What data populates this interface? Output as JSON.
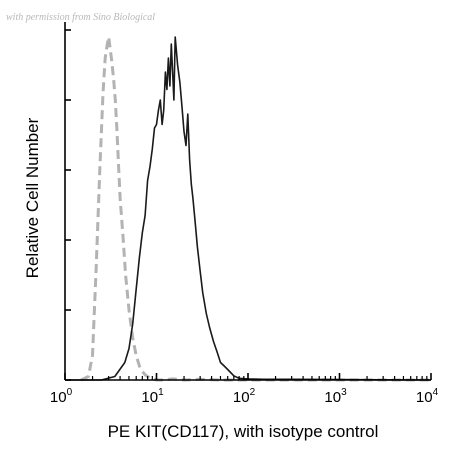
{
  "watermark": "with permission from Sino Biological",
  "chart_data": {
    "type": "line",
    "xlabel": "PE KIT(CD117), with isotype control",
    "ylabel": "Relative Cell Number",
    "x_scale": "log",
    "xlim": [
      1,
      10000
    ],
    "ylim": [
      0,
      1
    ],
    "x_ticks": [
      {
        "base": "10",
        "exp": "0",
        "value": 1
      },
      {
        "base": "10",
        "exp": "1",
        "value": 10
      },
      {
        "base": "10",
        "exp": "2",
        "value": 100
      },
      {
        "base": "10",
        "exp": "3",
        "value": 1000
      },
      {
        "base": "10",
        "exp": "4",
        "value": 10000
      }
    ],
    "y_ticks": [
      0,
      0.2,
      0.4,
      0.6,
      0.8,
      1.0
    ],
    "grid": false,
    "series": [
      {
        "name": "",
        "style": "dashed",
        "color": "#b3b3b3",
        "x": [
          1.5,
          1.8,
          2.0,
          2.2,
          2.4,
          2.6,
          2.75,
          2.9,
          3.0,
          3.1,
          3.25,
          3.4,
          3.55,
          3.7,
          3.85,
          4.0,
          4.3,
          4.6,
          5.0,
          5.5,
          6.0,
          6.5,
          7.0,
          7.5,
          8.0,
          8.5,
          9.0,
          9.5,
          10,
          12,
          15,
          20,
          30,
          50,
          100,
          200,
          500,
          1000,
          3000,
          10000
        ],
        "y": [
          0.0,
          0.01,
          0.07,
          0.33,
          0.6,
          0.82,
          0.92,
          0.96,
          0.98,
          0.95,
          0.91,
          0.86,
          0.8,
          0.71,
          0.61,
          0.52,
          0.41,
          0.3,
          0.2,
          0.12,
          0.07,
          0.04,
          0.025,
          0.015,
          0.01,
          0.006,
          0.004,
          0.002,
          0.0,
          0.0,
          0.003,
          0.0,
          0.002,
          0.0,
          0.0,
          0.0,
          0.0,
          0.0,
          0.0,
          0.0
        ]
      },
      {
        "name": "",
        "style": "solid",
        "color": "#1a1a1a",
        "x": [
          1.0,
          2.5,
          3.5,
          4.5,
          5.0,
          5.5,
          6.0,
          6.5,
          7.0,
          7.5,
          8.0,
          8.5,
          9.0,
          9.5,
          10,
          10.5,
          11,
          11.5,
          12,
          12.5,
          13,
          13.5,
          14,
          14.5,
          15,
          15.5,
          16,
          17,
          18,
          19,
          20,
          21,
          22,
          23,
          24,
          25,
          26.5,
          28,
          30,
          32,
          35,
          38,
          42,
          46,
          50,
          55,
          60,
          70,
          80,
          100,
          150,
          300,
          1000,
          10000
        ],
        "y": [
          0.0,
          0.0,
          0.01,
          0.05,
          0.09,
          0.16,
          0.26,
          0.35,
          0.42,
          0.47,
          0.57,
          0.61,
          0.66,
          0.72,
          0.73,
          0.77,
          0.8,
          0.73,
          0.77,
          0.88,
          0.83,
          0.92,
          0.84,
          0.96,
          0.88,
          0.8,
          0.98,
          0.9,
          0.85,
          0.78,
          0.71,
          0.67,
          0.76,
          0.63,
          0.56,
          0.52,
          0.45,
          0.38,
          0.31,
          0.25,
          0.19,
          0.15,
          0.11,
          0.08,
          0.05,
          0.04,
          0.03,
          0.012,
          0.005,
          0.003,
          0.002,
          0.002,
          0.001,
          0.0
        ]
      }
    ]
  }
}
